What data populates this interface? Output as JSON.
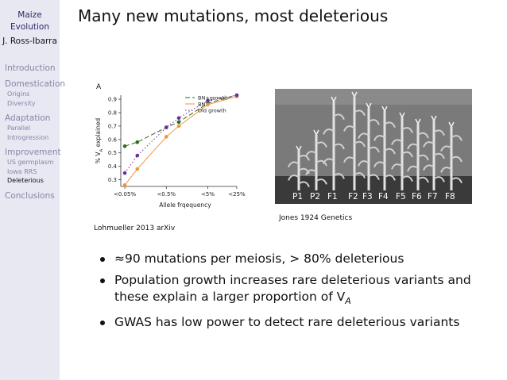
{
  "sidebar": {
    "title_line1": "Maize",
    "title_line2": "Evolution",
    "author": "J. Ross-Ibarra",
    "sections": [
      {
        "label": "Introduction",
        "subs": []
      },
      {
        "label": "Domestication",
        "subs": [
          "Origins",
          "Diversity"
        ]
      },
      {
        "label": "Adaptation",
        "subs": [
          "Parallel",
          "Introgression"
        ]
      },
      {
        "label": "Improvement",
        "subs": [
          "US germplasm",
          "Iowa RRS",
          "Deleterious"
        ]
      },
      {
        "label": "Conclusions",
        "subs": []
      }
    ],
    "active_sub": "Deleterious"
  },
  "slide": {
    "title": "Many new mutations, most deleterious",
    "figure_caption": "Lohmueller 2013 arXiv",
    "photo_caption": "Jones 1924 Genetics",
    "photo_labels": [
      "P1",
      "P2",
      "F1",
      "F2",
      "F3",
      "F4",
      "F5",
      "F6",
      "F7",
      "F8"
    ],
    "bullets": [
      "≈90 mutations per meiosis, > 80% deleterious",
      "Population growth increases rare deleterious variants and these explain a larger proportion of V",
      "GWAS has low power to detect rare deleterious variants"
    ],
    "bullet2_sub": "A"
  },
  "chart_data": {
    "type": "line",
    "panel_label": "A",
    "xlabel": "Allele frqequency",
    "ylabel_main": "% V",
    "ylabel_sub": "A",
    "ylabel_tail": " explained",
    "x_ticks": [
      "<0.05%",
      "<0.5%",
      "<5%",
      "<25%"
    ],
    "x_values": [
      0.0005,
      0.001,
      0.005,
      0.01,
      0.05,
      0.25
    ],
    "y_ticks": [
      0.3,
      0.4,
      0.5,
      0.6,
      0.7,
      0.8,
      0.9
    ],
    "ylim": [
      0.25,
      0.93
    ],
    "grid": false,
    "legend_position": "top-right",
    "series": [
      {
        "name": "BN+growth",
        "color": "#2e6b1e",
        "dash": "6,3",
        "values": [
          0.55,
          0.58,
          0.69,
          0.73,
          0.87,
          0.93
        ]
      },
      {
        "name": "BN",
        "color": "#f0943c",
        "dash": "",
        "values": [
          0.26,
          0.38,
          0.62,
          0.7,
          0.86,
          0.92
        ]
      },
      {
        "name": "Old growth",
        "color": "#6a2e9e",
        "dash": "1.5,2.5",
        "values": [
          0.35,
          0.48,
          0.69,
          0.76,
          0.89,
          0.93
        ]
      }
    ]
  }
}
